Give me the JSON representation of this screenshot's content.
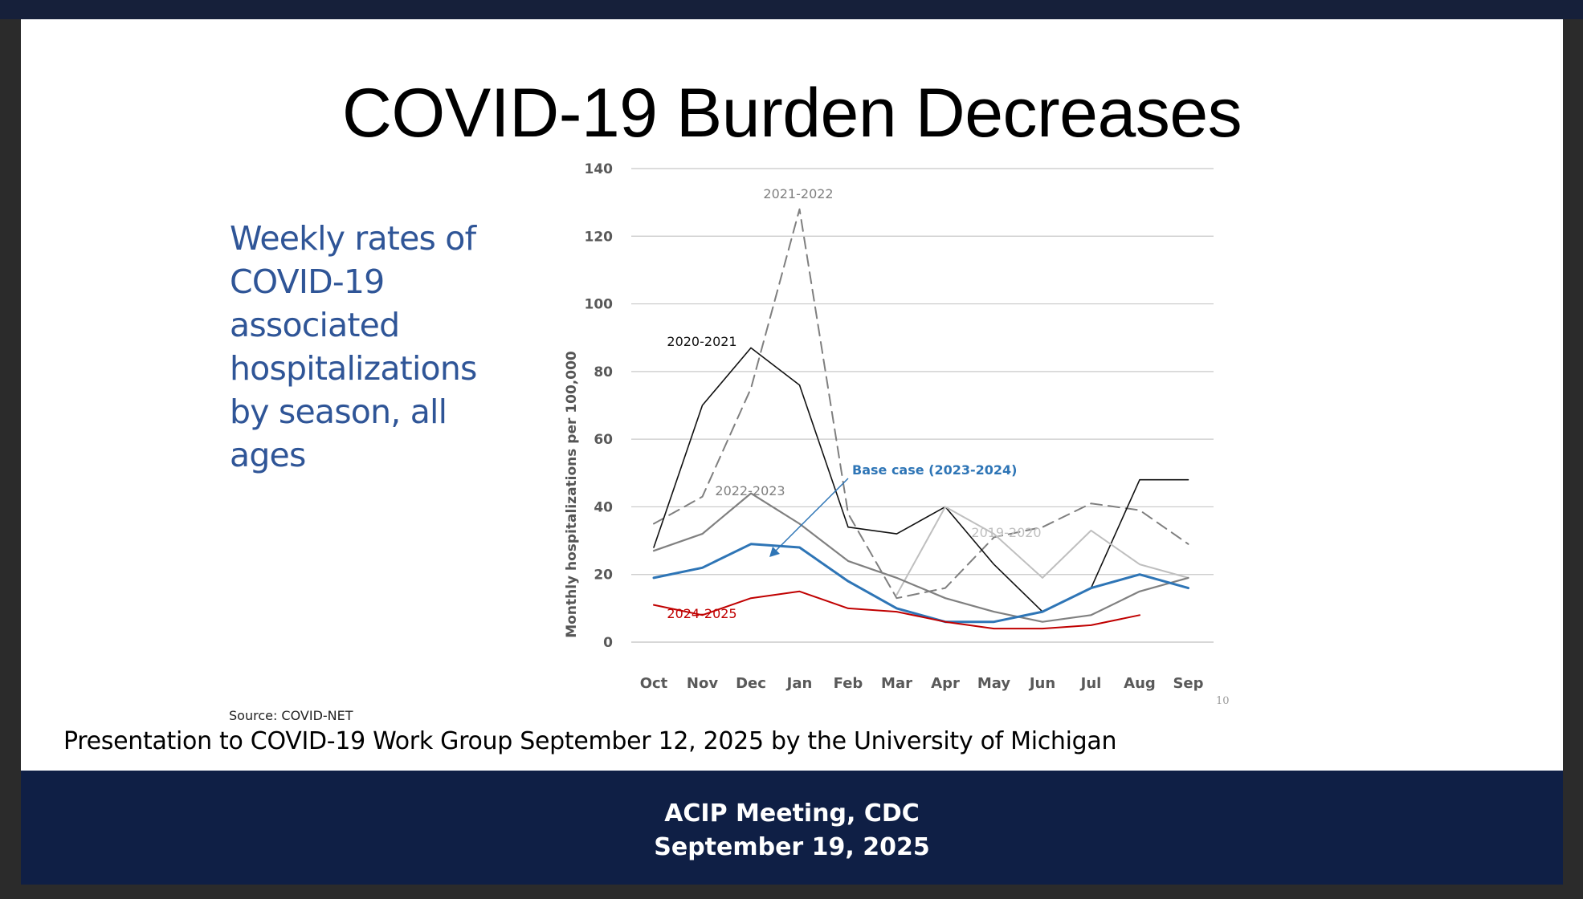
{
  "slide": {
    "title": "COVID-19 Burden Decreases",
    "side_text": "Weekly rates of\nCOVID-19\nassociated\nhospitalizations\nby season, all\nages",
    "source": "Source: COVID-NET",
    "page_number": "10",
    "presentation_note": "Presentation to COVID-19 Work Group September 12, 2025 by the University of Michigan"
  },
  "footer": {
    "line1": "ACIP Meeting, CDC",
    "line2": "September 19, 2025"
  },
  "colors": {
    "title": "#000000",
    "side_text": "#2f5597",
    "footer_bg": "#0f1f45"
  },
  "chart_data": {
    "type": "line",
    "title": "",
    "xlabel": "",
    "ylabel": "Monthly hospitalizations per 100,000",
    "ylim": [
      0,
      140
    ],
    "yticks": [
      0,
      20,
      40,
      60,
      80,
      100,
      120,
      140
    ],
    "grid": true,
    "categories": [
      "Oct",
      "Nov",
      "Dec",
      "Jan",
      "Feb",
      "Mar",
      "Apr",
      "May",
      "Jun",
      "Jul",
      "Aug",
      "Sep"
    ],
    "series": [
      {
        "name": "2021-2022",
        "label": "2021-2022",
        "color": "#7f7f7f",
        "dash": "dashed",
        "width": 2,
        "values": [
          35,
          43,
          75,
          128,
          38,
          13,
          16,
          31,
          34,
          41,
          39,
          29
        ]
      },
      {
        "name": "2020-2021",
        "label": "2020-2021",
        "color": "#111111",
        "dash": "solid",
        "width": 1.6,
        "values": [
          28,
          70,
          87,
          76,
          34,
          32,
          40,
          23,
          9,
          null,
          null,
          null
        ]
      },
      {
        "name": "2020-2021 (Jul-Sep)",
        "label": "",
        "color": "#111111",
        "dash": "solid",
        "width": 1.6,
        "values": [
          null,
          null,
          null,
          null,
          null,
          null,
          null,
          null,
          null,
          16,
          48,
          48
        ]
      },
      {
        "name": "2019-2020",
        "label": "2019-2020",
        "color": "#bfbfbf",
        "dash": "solid",
        "width": 2,
        "values": [
          null,
          null,
          null,
          null,
          null,
          14,
          40,
          32,
          19,
          33,
          23,
          19
        ]
      },
      {
        "name": "2022-2023",
        "label": "2022-2023",
        "color": "#808080",
        "dash": "solid",
        "width": 2.2,
        "values": [
          27,
          32,
          44,
          35,
          24,
          19,
          13,
          9,
          6,
          8,
          15,
          19
        ]
      },
      {
        "name": "Base case (2023-2024)",
        "label": "Base case (2023-2024)",
        "color": "#2e75b6",
        "dash": "solid",
        "width": 3,
        "values": [
          19,
          22,
          29,
          28,
          18,
          10,
          6,
          6,
          9,
          16,
          20,
          16
        ]
      },
      {
        "name": "2024-2025",
        "label": "2024-2025",
        "color": "#c00000",
        "dash": "solid",
        "width": 2,
        "values": [
          11,
          8,
          13,
          15,
          10,
          9,
          6,
          4,
          4,
          5,
          8,
          null
        ]
      }
    ],
    "annotations": [
      {
        "text": "2021-2022",
        "series": "2021-2022"
      },
      {
        "text": "2020-2021",
        "series": "2020-2021"
      },
      {
        "text": "2022-2023",
        "series": "2022-2023"
      },
      {
        "text": "2019-2020",
        "series": "2019-2020"
      },
      {
        "text": "Base case (2023-2024)",
        "series": "Base case (2023-2024)",
        "arrow": true
      },
      {
        "text": "2024-2025",
        "series": "2024-2025"
      }
    ]
  }
}
